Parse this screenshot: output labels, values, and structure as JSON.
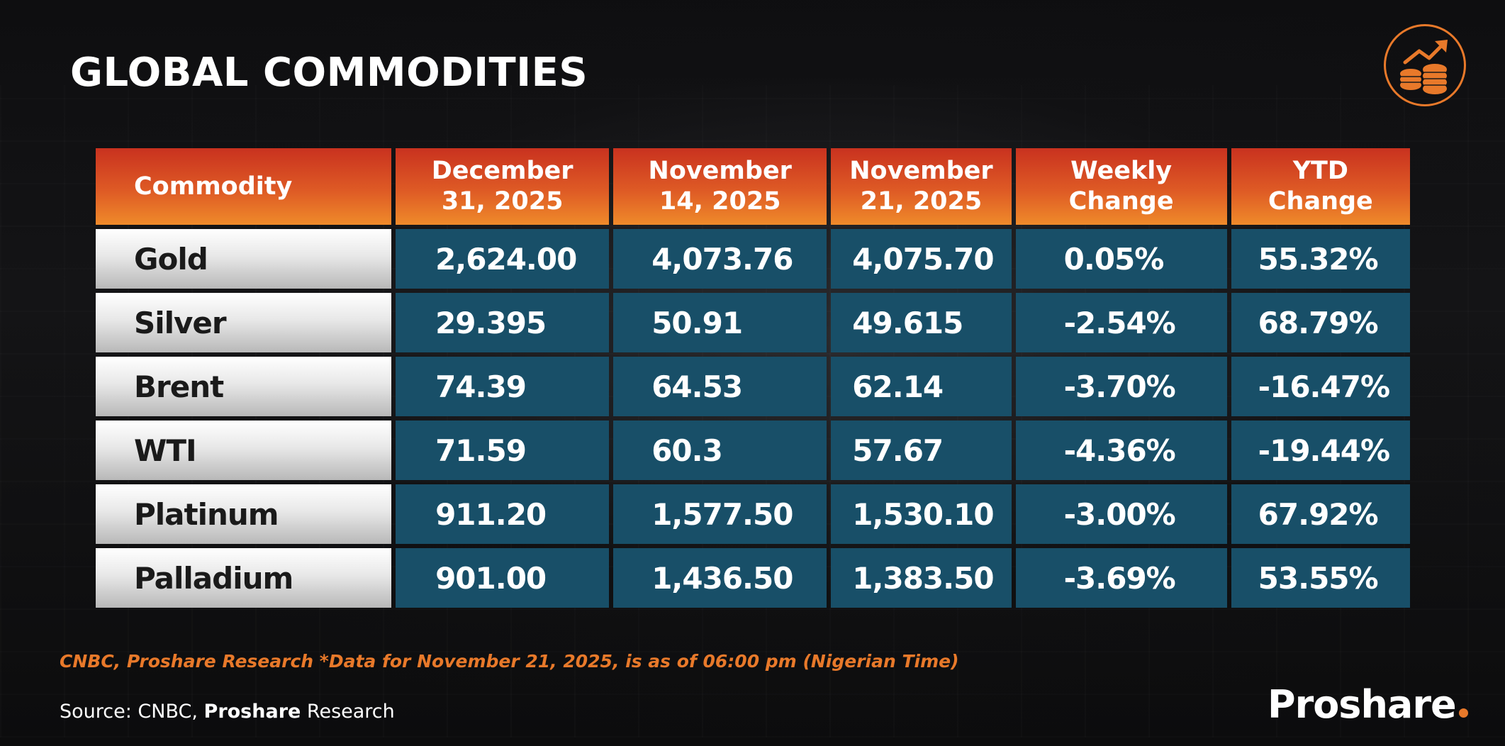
{
  "header": {
    "title": "GLOBAL COMMODITIES",
    "icon": "coins-chart-icon",
    "accent_color": "#e8792a"
  },
  "table": {
    "columns": [
      {
        "line1": "Commodity",
        "line2": ""
      },
      {
        "line1": "December",
        "line2": "31, 2025"
      },
      {
        "line1": "November",
        "line2": "14, 2025"
      },
      {
        "line1": "November",
        "line2": "21, 2025"
      },
      {
        "line1": "Weekly",
        "line2": "Change"
      },
      {
        "line1": "YTD",
        "line2": "Change"
      }
    ],
    "rows": [
      {
        "name": "Gold",
        "dec31": "2,624.00",
        "nov14": "4,073.76",
        "nov21": "4,075.70",
        "weekly": "0.05%",
        "ytd": "55.32%"
      },
      {
        "name": "Silver",
        "dec31": "29.395",
        "nov14": "50.91",
        "nov21": "49.615",
        "weekly": "-2.54%",
        "ytd": "68.79%"
      },
      {
        "name": "Brent",
        "dec31": "74.39",
        "nov14": "64.53",
        "nov21": "62.14",
        "weekly": "-3.70%",
        "ytd": "-16.47%"
      },
      {
        "name": "WTI",
        "dec31": "71.59",
        "nov14": "60.3",
        "nov21": "57.67",
        "weekly": "-4.36%",
        "ytd": "-19.44%"
      },
      {
        "name": "Platinum",
        "dec31": "911.20",
        "nov14": "1,577.50",
        "nov21": "1,530.10",
        "weekly": "-3.00%",
        "ytd": "67.92%"
      },
      {
        "name": "Palladium",
        "dec31": "901.00",
        "nov14": "1,436.50",
        "nov21": "1,383.50",
        "weekly": "-3.69%",
        "ytd": "53.55%"
      }
    ]
  },
  "footer": {
    "note": "CNBC, Proshare Research *Data for November 21, 2025, is as of 06:00 pm (Nigerian Time)",
    "source_prefix": "Source: CNBC, ",
    "source_brand": "Proshare",
    "source_suffix": " Research",
    "brand": "Proshare"
  }
}
